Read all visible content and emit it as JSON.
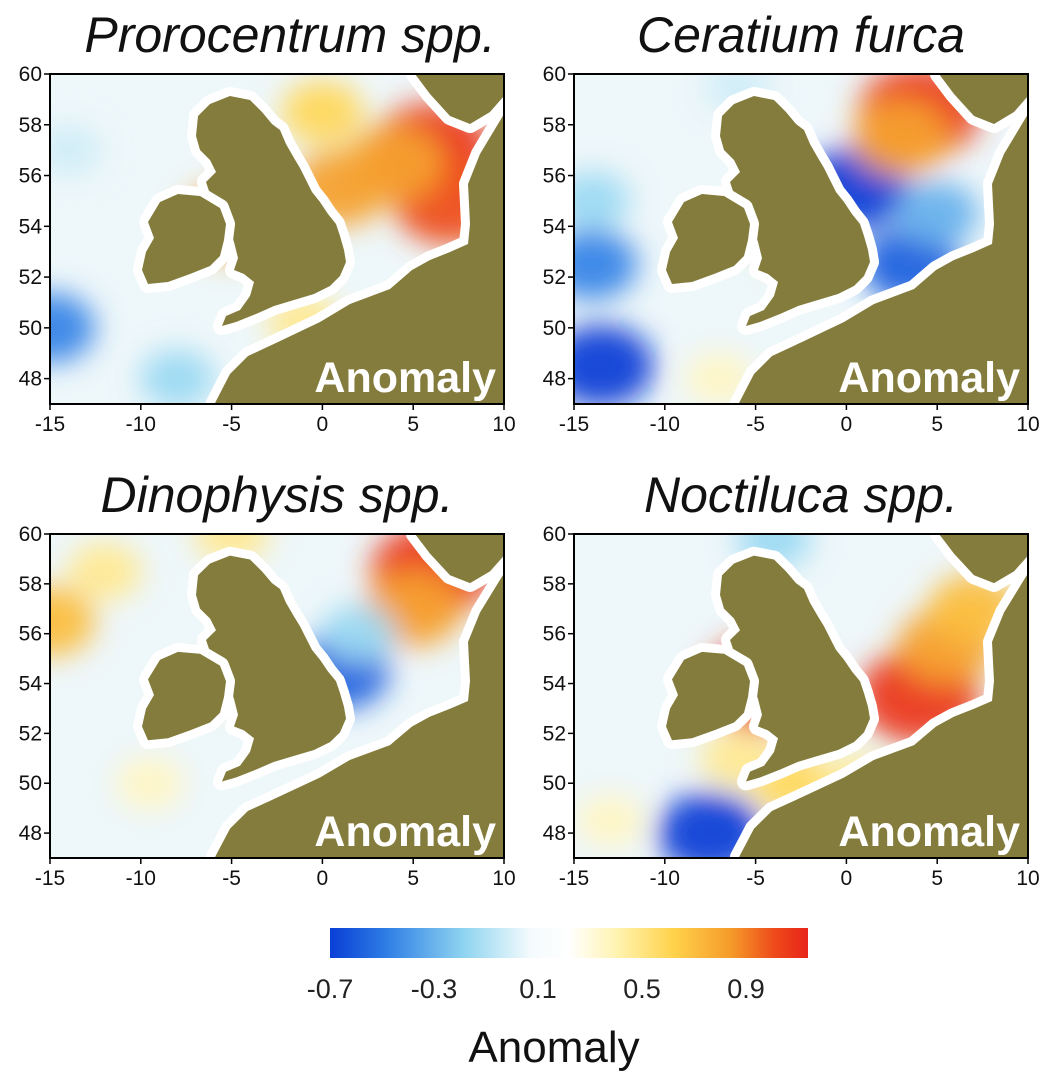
{
  "figure": {
    "colorbar": {
      "ticks": [
        "-0.7",
        "-0.3",
        "0.1",
        "0.5",
        "0.9"
      ],
      "label": "Anomaly",
      "colors": [
        "#0a3fd6",
        "#2f7fe6",
        "#8fd4f0",
        "#f4fbfd",
        "#ffffff",
        "#fff3b0",
        "#ffd24a",
        "#f59a2a",
        "#ee4a1a",
        "#e8241a"
      ]
    },
    "land_color": "#847c3c",
    "coast_halo_color": "#ffffff",
    "ocean_neutral_color": "#eef7fa",
    "panels": [
      {
        "title": "Prorocentrum spp.",
        "watermark": "Anomaly",
        "x_ticks": [
          "-15",
          "-10",
          "-5",
          "0",
          "5",
          "10"
        ],
        "y_ticks": [
          "60",
          "58",
          "56",
          "54",
          "52",
          "50",
          "48"
        ],
        "anomaly_patches": [
          {
            "lon": -15,
            "lat": 50,
            "value": -0.5
          },
          {
            "lon": -8,
            "lat": 48,
            "value": -0.3
          },
          {
            "lon": -14,
            "lat": 57,
            "value": -0.2
          },
          {
            "lon": -5,
            "lat": 54.2,
            "value": 0.6
          },
          {
            "lon": 1,
            "lat": 55.5,
            "value": 0.6
          },
          {
            "lon": 6,
            "lat": 57,
            "value": 0.9
          },
          {
            "lon": 7,
            "lat": 55,
            "value": 0.8
          },
          {
            "lon": 4,
            "lat": 56.5,
            "value": 0.6
          },
          {
            "lon": 0,
            "lat": 58.5,
            "value": 0.4
          },
          {
            "lon": -1,
            "lat": 50.2,
            "value": 0.3
          }
        ]
      },
      {
        "title": "Ceratium furca",
        "watermark": "Anomaly",
        "x_ticks": [
          "-15",
          "-10",
          "-5",
          "0",
          "5",
          "10"
        ],
        "y_ticks": [
          "60",
          "58",
          "56",
          "54",
          "52",
          "50",
          "48"
        ],
        "anomaly_patches": [
          {
            "lon": -13.5,
            "lat": 48.5,
            "value": -0.7
          },
          {
            "lon": -14,
            "lat": 52.5,
            "value": -0.5
          },
          {
            "lon": -14,
            "lat": 55,
            "value": -0.3
          },
          {
            "lon": 0.5,
            "lat": 55.5,
            "value": -0.7
          },
          {
            "lon": 3.5,
            "lat": 52.5,
            "value": -0.6
          },
          {
            "lon": 5,
            "lat": 54.5,
            "value": -0.4
          },
          {
            "lon": 4,
            "lat": 58.5,
            "value": 0.9
          },
          {
            "lon": 3,
            "lat": 57.5,
            "value": 0.6
          },
          {
            "lon": -3,
            "lat": 53.5,
            "value": 0.3
          },
          {
            "lon": -6,
            "lat": 59.5,
            "value": -0.2
          },
          {
            "lon": -7,
            "lat": 48,
            "value": 0.2
          }
        ]
      },
      {
        "title": "Dinophysis spp.",
        "watermark": "Anomaly",
        "x_ticks": [
          "-15",
          "-10",
          "-5",
          "0",
          "5",
          "10"
        ],
        "y_ticks": [
          "60",
          "58",
          "56",
          "54",
          "52",
          "50",
          "48"
        ],
        "anomaly_patches": [
          {
            "lon": -15,
            "lat": 56.5,
            "value": 0.5
          },
          {
            "lon": -12,
            "lat": 58.5,
            "value": 0.3
          },
          {
            "lon": -5,
            "lat": 60,
            "value": 0.3
          },
          {
            "lon": 6,
            "lat": 58.5,
            "value": 0.9
          },
          {
            "lon": 5,
            "lat": 57,
            "value": 0.6
          },
          {
            "lon": 1,
            "lat": 54.5,
            "value": -0.6
          },
          {
            "lon": 2,
            "lat": 56,
            "value": -0.3
          },
          {
            "lon": -5.5,
            "lat": 54,
            "value": 0.2
          },
          {
            "lon": -9.5,
            "lat": 50,
            "value": 0.2
          }
        ]
      },
      {
        "title": "Noctiluca spp.",
        "watermark": "Anomaly",
        "x_ticks": [
          "-15",
          "-10",
          "-5",
          "0",
          "5",
          "10"
        ],
        "y_ticks": [
          "60",
          "58",
          "56",
          "54",
          "52",
          "50",
          "48"
        ],
        "anomaly_patches": [
          {
            "lon": -7.5,
            "lat": 48,
            "value": -0.7
          },
          {
            "lon": -4,
            "lat": 59.8,
            "value": -0.3
          },
          {
            "lon": -4.5,
            "lat": 54,
            "value": 0.9
          },
          {
            "lon": 4,
            "lat": 53.5,
            "value": 0.9
          },
          {
            "lon": 5.5,
            "lat": 55.5,
            "value": 0.6
          },
          {
            "lon": 7,
            "lat": 57,
            "value": 0.5
          },
          {
            "lon": -3,
            "lat": 50,
            "value": 0.4
          },
          {
            "lon": -6,
            "lat": 51,
            "value": 0.3
          },
          {
            "lon": 0.5,
            "lat": 50,
            "value": 0.3
          },
          {
            "lon": -13,
            "lat": 48.5,
            "value": 0.2
          }
        ]
      }
    ]
  }
}
